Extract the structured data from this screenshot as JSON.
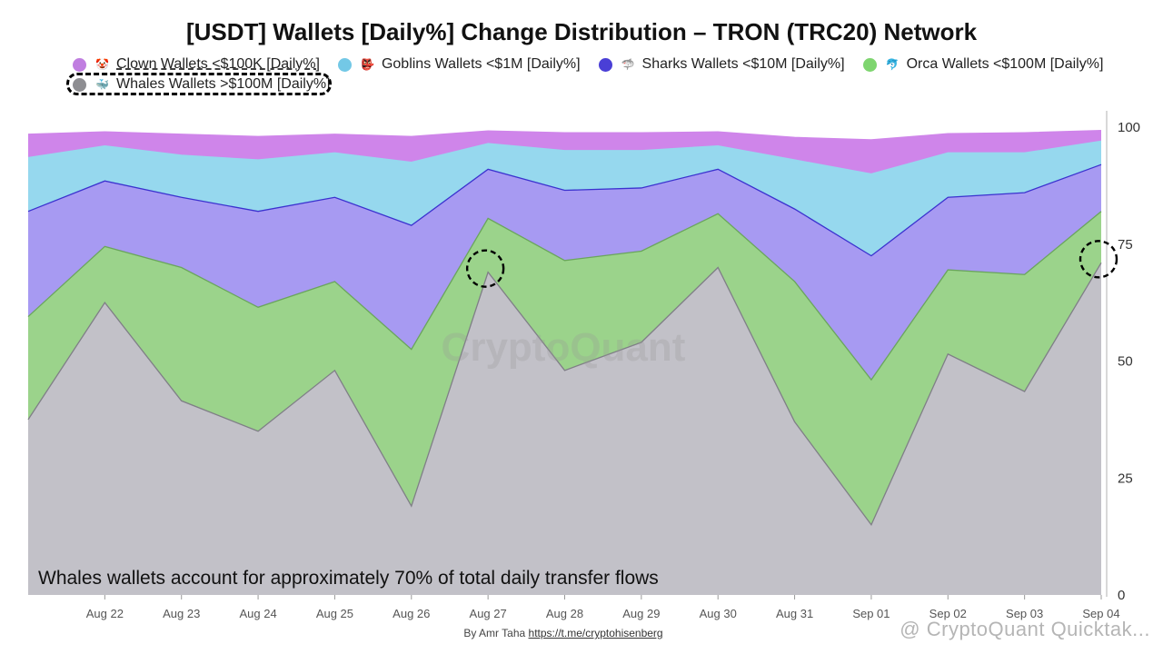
{
  "title": "[USDT] Wallets [Daily%] Change Distribution – TRON (TRC20) Network",
  "legend": [
    {
      "label": "Clown Wallets <$100K [Daily%]",
      "color": "#c07ee0",
      "icon": "clown-face-icon",
      "glyph": "🤡",
      "emoji_bg": "#ffffff"
    },
    {
      "label": "Goblins Wallets <$1M [Daily%]",
      "color": "#73c8e6",
      "icon": "goblin-icon",
      "glyph": "👺",
      "emoji_bg": "#ffffff"
    },
    {
      "label": "Sharks Wallets <$10M [Daily%]",
      "color": "#4a3fd6",
      "icon": "shark-icon",
      "glyph": "🦈",
      "emoji_bg": "#ffffff"
    },
    {
      "label": "Orca Wallets <$100M [Daily%]",
      "color": "#7ed56f",
      "icon": "orca-icon",
      "glyph": "🐬",
      "emoji_bg": "#ffffff"
    },
    {
      "label": "Whales Wallets >$100M [Daily%]",
      "color": "#8e8e92",
      "icon": "whale-icon",
      "glyph": "🐳",
      "emoji_bg": "#ffffff"
    }
  ],
  "watermark": "CryptoQuant",
  "annotation": "Whales wallets account for approximately 70% of total daily transfer flows",
  "footer": {
    "prefix": "By Amr Taha ",
    "link": "https://t.me/cryptohisenberg"
  },
  "quicktake": "@ CryptoQuant Quicktak...",
  "chart_data": {
    "type": "area",
    "stacked": true,
    "categories": [
      "",
      "Aug 22",
      "Aug 23",
      "Aug 24",
      "Aug 25",
      "Aug 26",
      "Aug 27",
      "Aug 28",
      "Aug 29",
      "Aug 30",
      "Aug 31",
      "Sep 01",
      "Sep 02",
      "Sep 03",
      "Sep 04"
    ],
    "ylim": [
      0,
      100
    ],
    "yticks": [
      0,
      25,
      50,
      75,
      100
    ],
    "y_axis_side": "right",
    "series": [
      {
        "name": "Whales Wallets >$100M [Daily%]",
        "fill": "#c2c1c8",
        "line": "#7f7f86",
        "cumulative": [
          37.5,
          62.5,
          41.5,
          35,
          48,
          19,
          69,
          48,
          54,
          70,
          37,
          15,
          51.5,
          43.5,
          71
        ]
      },
      {
        "name": "Orca Wallets <$100M [Daily%]",
        "fill": "#9bd38b",
        "line": "#6aa55c",
        "cumulative": [
          59.5,
          74.5,
          70,
          61.5,
          67,
          52.5,
          80.5,
          71.5,
          73.5,
          81.5,
          67,
          46,
          69.5,
          68.5,
          82
        ]
      },
      {
        "name": "Sharks Wallets <$10M [Daily%]",
        "fill": "#a79af2",
        "line": "#3b32cf",
        "cumulative": [
          82,
          88.5,
          85,
          82,
          85,
          79,
          91,
          86.5,
          87,
          91,
          82.5,
          72.5,
          85,
          86,
          92
        ]
      },
      {
        "name": "Goblins Wallets <$1M [Daily%]",
        "fill": "#96d8ee",
        "line": "#96d8ee",
        "cumulative": [
          93.5,
          96,
          94,
          93,
          94.5,
          92.5,
          96.5,
          95,
          95,
          96,
          93,
          90,
          94.5,
          94.5,
          97
        ]
      },
      {
        "name": "Clown Wallets <$100K [Daily%]",
        "fill": "#cf85ea",
        "line": "#cf85ea",
        "cumulative": [
          98.5,
          99,
          98.5,
          98,
          98.5,
          98,
          99.2,
          98.8,
          98.8,
          99,
          97.8,
          97.3,
          98.6,
          98.8,
          99.3
        ]
      }
    ],
    "highlighted_points": [
      {
        "category": "Aug 27",
        "value": 69
      },
      {
        "category": "Sep 04",
        "value": 71
      }
    ]
  }
}
